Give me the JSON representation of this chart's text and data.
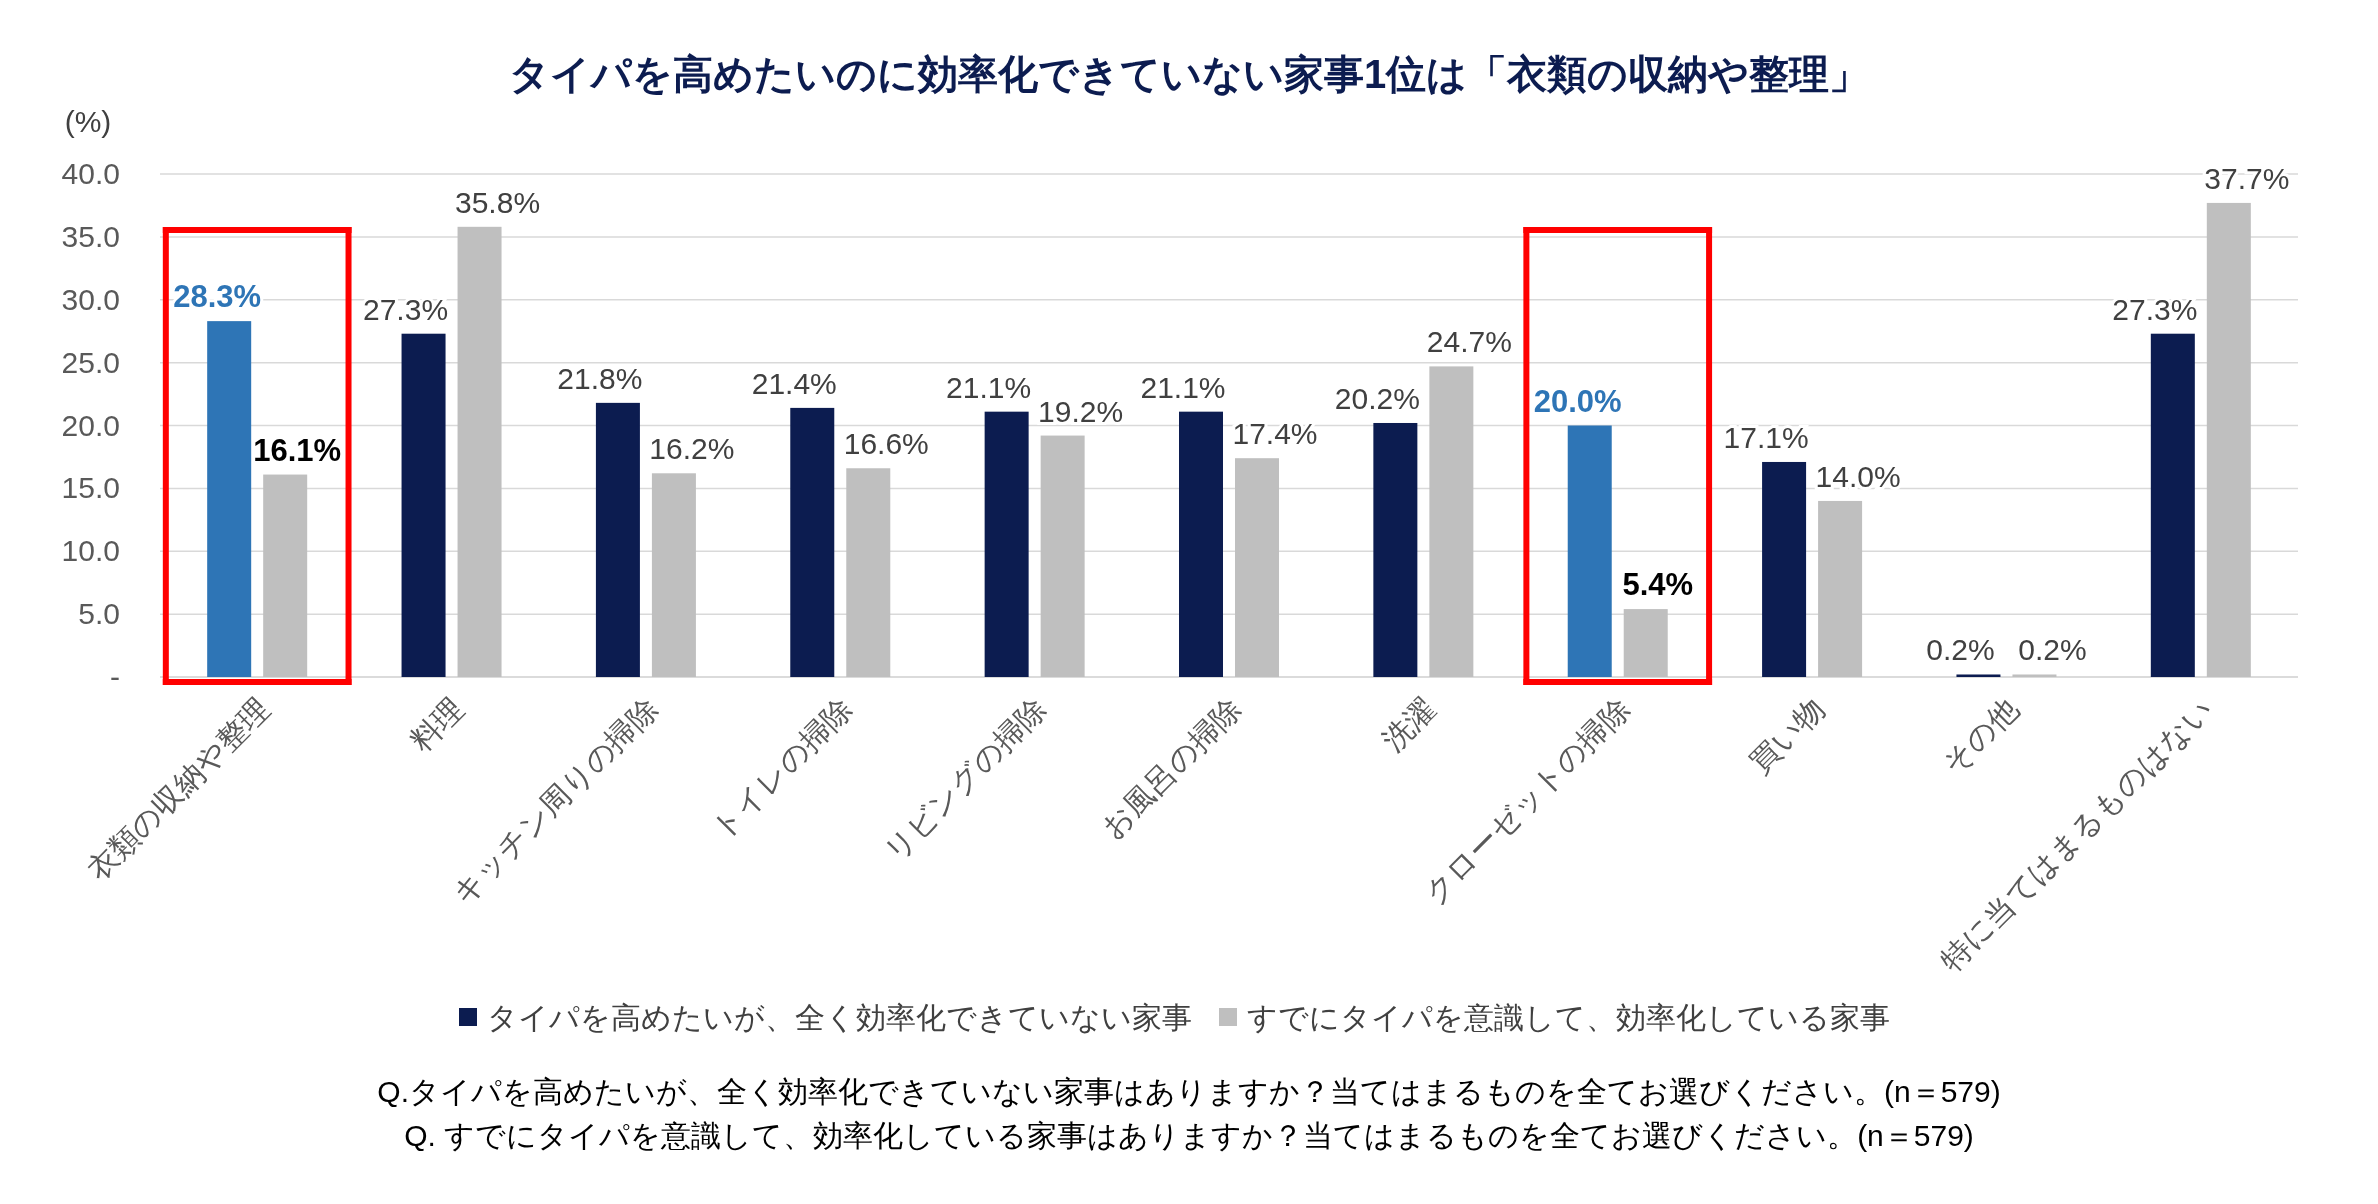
{
  "chart_data": {
    "type": "bar",
    "title": "タイパを高めたいのに効率化できていない家事1位は「衣類の収納や整理」",
    "ylabel": "(%)",
    "categories": [
      "衣類の収納や整理",
      "料理",
      "キッチン周りの掃除",
      "トイレの掃除",
      "リビングの掃除",
      "お風呂の掃除",
      "洗濯",
      "クローゼットの掃除",
      "買い物",
      "その他",
      "特に当てはまるものはない"
    ],
    "series": [
      {
        "name": "タイパを高めたいが、全く効率化できていない家事",
        "color": "#0c1c50",
        "colors": [
          "#2e75b6",
          "#0c1c50",
          "#0c1c50",
          "#0c1c50",
          "#0c1c50",
          "#0c1c50",
          "#0c1c50",
          "#2e75b6",
          "#0c1c50",
          "#0c1c50",
          "#0c1c50"
        ],
        "values": [
          28.3,
          27.3,
          21.8,
          21.4,
          21.1,
          21.1,
          20.2,
          20.0,
          17.1,
          0.2,
          27.3
        ],
        "value_labels": [
          "28.3%",
          "27.3%",
          "21.8%",
          "21.4%",
          "21.1%",
          "21.1%",
          "20.2%",
          "20.0%",
          "17.1%",
          "0.2%",
          "27.3%"
        ]
      },
      {
        "name": "すでにタイパを意識して、効率化している家事",
        "color": "#bfbfbf",
        "values": [
          16.1,
          35.8,
          16.2,
          16.6,
          19.2,
          17.4,
          24.7,
          5.4,
          14.0,
          0.2,
          37.7
        ],
        "value_labels": [
          "16.1%",
          "35.8%",
          "16.2%",
          "16.6%",
          "19.2%",
          "17.4%",
          "24.7%",
          "5.4%",
          "14.0%",
          "0.2%",
          "37.7%"
        ]
      }
    ],
    "ylim": [
      0,
      40
    ],
    "yticks": [
      {
        "value": 0,
        "label": "-"
      },
      {
        "value": 5,
        "label": "5.0"
      },
      {
        "value": 10,
        "label": "10.0"
      },
      {
        "value": 15,
        "label": "15.0"
      },
      {
        "value": 20,
        "label": "20.0"
      },
      {
        "value": 25,
        "label": "25.0"
      },
      {
        "value": 30,
        "label": "30.0"
      },
      {
        "value": 35,
        "label": "35.0"
      },
      {
        "value": 40,
        "label": "40.0"
      }
    ],
    "grid": "y",
    "legend": "bottom",
    "annotations": [
      "Q.タイパを高めたいが、全く効率化できていない家事はありますか？当てはまるものを全てお選びください。(n＝579)",
      "Q. すでにタイパを意識して、効率化している家事はありますか？当てはまるものを全てお選びください。(n＝579)"
    ]
  }
}
